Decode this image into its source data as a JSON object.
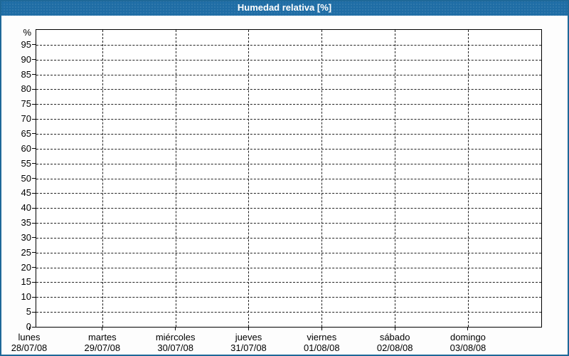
{
  "window": {
    "title": "Humedad relativa [%]"
  },
  "colors": {
    "header_bg": "#1f6da5",
    "frame_border": "#1e6898",
    "grid": "#000000",
    "plot_bg": "#ffffff",
    "title_text": "#ffffff",
    "axis_text": "#000000"
  },
  "chart_data": {
    "type": "line",
    "title": "Humedad relativa [%]",
    "xlabel": "",
    "ylabel": "%",
    "ylim": [
      0,
      100
    ],
    "ytick_interval": 5,
    "ytick_labels": [
      "0",
      "5",
      "10",
      "15",
      "20",
      "25",
      "30",
      "35",
      "40",
      "45",
      "50",
      "55",
      "60",
      "65",
      "70",
      "75",
      "80",
      "85",
      "90",
      "95"
    ],
    "x_categories": [
      {
        "weekday": "lunes",
        "date": "28/07/08"
      },
      {
        "weekday": "martes",
        "date": "29/07/08"
      },
      {
        "weekday": "miércoles",
        "date": "30/07/08"
      },
      {
        "weekday": "jueves",
        "date": "31/07/08"
      },
      {
        "weekday": "viernes",
        "date": "01/08/08"
      },
      {
        "weekday": "sábado",
        "date": "02/08/08"
      },
      {
        "weekday": "domingo",
        "date": "03/08/08"
      }
    ],
    "series": [],
    "grid": "dashed",
    "legend": "none"
  }
}
